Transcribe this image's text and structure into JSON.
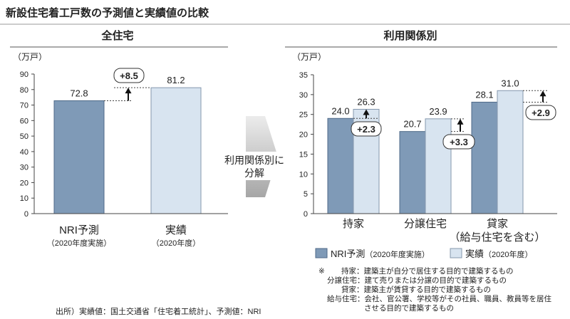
{
  "title": "新設住宅着工戸数の予測値と実績値の比較",
  "colors": {
    "forecast_bar": "#7F9AB7",
    "forecast_bar_edge": "#4F6A88",
    "actual_bar": "#D8E4F0",
    "actual_bar_edge": "#8497AD"
  },
  "decompose_arrow": {
    "line1": "利用関係別に",
    "line2": "分解"
  },
  "chart_data": [
    {
      "type": "bar",
      "title": "全住宅",
      "ylabel": "（万戸）",
      "ylim": [
        0,
        90
      ],
      "yticks": [
        0,
        10,
        20,
        30,
        40,
        50,
        60,
        70,
        80,
        90
      ],
      "grid": false,
      "categories": [
        "NRI予測",
        "実績"
      ],
      "category_notes": [
        "（2020年度実施）",
        "（2020年度）"
      ],
      "values": [
        72.8,
        81.2
      ],
      "data_labels": [
        "72.8",
        "81.2"
      ],
      "annotations": [
        {
          "text": "+8.5",
          "from": 72.8,
          "to": 81.2
        }
      ]
    },
    {
      "type": "bar",
      "title": "利用関係別",
      "ylabel": "（万戸）",
      "ylim": [
        0,
        35
      ],
      "yticks": [
        0,
        5,
        10,
        15,
        20,
        25,
        30,
        35
      ],
      "grid": false,
      "legend": "bottom-left",
      "categories": [
        "持家",
        "分譲住宅",
        "貸家"
      ],
      "category_notes": [
        "",
        "",
        "（給与住宅を含む）"
      ],
      "series": [
        {
          "name": "NRI予測",
          "name_note": "（2020年度実施）",
          "values": [
            24.0,
            20.7,
            28.1
          ],
          "data_labels": [
            "24.0",
            "20.7",
            "28.1"
          ]
        },
        {
          "name": "実績",
          "name_note": "（2020年度）",
          "values": [
            26.3,
            23.9,
            31.0
          ],
          "data_labels": [
            "26.3",
            "23.9",
            "31.0"
          ]
        }
      ],
      "annotations": [
        {
          "text": "+2.3",
          "from": 24.0,
          "to": 26.3
        },
        {
          "text": "+3.3",
          "from": 20.7,
          "to": 23.9
        },
        {
          "text": "+2.9",
          "from": 28.1,
          "to": 31.0
        }
      ]
    }
  ],
  "notes": {
    "mark": "※",
    "lines": [
      "持家：建築主が自分で居住する目的で建築するもの",
      "分譲住宅：建て売りまたは分譲の目的で建築するもの",
      "貸家：建築主が賃貸する目的で建築するもの",
      "給与住宅：会社、官公署、学校等がその社員、職員、教員等を居住",
      "させる目的で建築するもの"
    ]
  },
  "source": "出所）実績値：国土交通省「住宅着工統計」、予測値：NRI"
}
